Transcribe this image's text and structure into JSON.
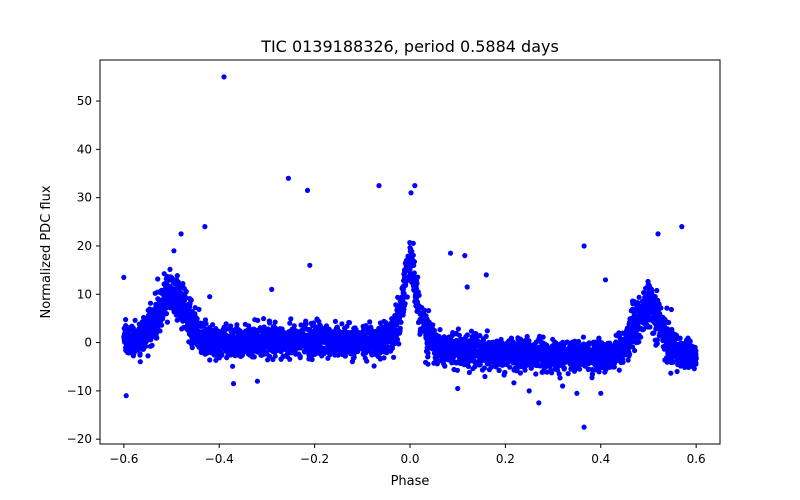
{
  "chart_data": {
    "type": "scatter",
    "title": "TIC 0139188326, period 0.5884 days",
    "xlabel": "Phase",
    "ylabel": "Normalized PDC flux",
    "xlim": [
      -0.65,
      0.65
    ],
    "ylim": [
      -21,
      58.5
    ],
    "xticks": [
      -0.6,
      -0.4,
      -0.2,
      0.0,
      0.2,
      0.4,
      0.6
    ],
    "xtick_labels": [
      "−0.6",
      "−0.4",
      "−0.2",
      "0.0",
      "0.2",
      "0.4",
      "0.6"
    ],
    "yticks": [
      -20,
      -10,
      0,
      10,
      20,
      30,
      40,
      50
    ],
    "ytick_labels": [
      "−20",
      "−10",
      "0",
      "10",
      "20",
      "30",
      "40",
      "50"
    ],
    "grid": false,
    "marker_color": "#0000ff",
    "x_range": [
      -0.6,
      0.6
    ],
    "peaks": [
      {
        "phase": -0.5,
        "max_flux": 15
      },
      {
        "phase": 0.0,
        "max_flux": 26
      },
      {
        "phase": 0.5,
        "max_flux": 15
      }
    ],
    "outliers": [
      {
        "x": -0.39,
        "y": 55
      },
      {
        "x": -0.255,
        "y": 34
      },
      {
        "x": -0.215,
        "y": 31.5
      },
      {
        "x": -0.065,
        "y": 32.5
      },
      {
        "x": 0.01,
        "y": 32.5
      },
      {
        "x": 0.002,
        "y": 31
      },
      {
        "x": -0.21,
        "y": 16
      },
      {
        "x": -0.43,
        "y": 24
      },
      {
        "x": -0.48,
        "y": 22.5
      },
      {
        "x": -0.495,
        "y": 19
      },
      {
        "x": 0.365,
        "y": 20
      },
      {
        "x": 0.57,
        "y": 24
      },
      {
        "x": 0.52,
        "y": 22.5
      },
      {
        "x": 0.085,
        "y": 18.5
      },
      {
        "x": 0.115,
        "y": 18
      },
      {
        "x": 0.16,
        "y": 14
      },
      {
        "x": 0.41,
        "y": 13
      },
      {
        "x": -0.6,
        "y": 13.5
      },
      {
        "x": 0.12,
        "y": 11.5
      },
      {
        "x": -0.29,
        "y": 11
      },
      {
        "x": -0.42,
        "y": 9.5
      },
      {
        "x": 0.365,
        "y": -17.5
      },
      {
        "x": 0.27,
        "y": -12.5
      },
      {
        "x": -0.595,
        "y": -11
      },
      {
        "x": 0.35,
        "y": -10.5
      },
      {
        "x": 0.25,
        "y": -10
      },
      {
        "x": 0.4,
        "y": -10.5
      },
      {
        "x": 0.1,
        "y": -9.5
      },
      {
        "x": -0.37,
        "y": -8.5
      },
      {
        "x": 0.32,
        "y": -9
      },
      {
        "x": 0.56,
        "y": -6
      },
      {
        "x": -0.32,
        "y": -8
      }
    ]
  }
}
